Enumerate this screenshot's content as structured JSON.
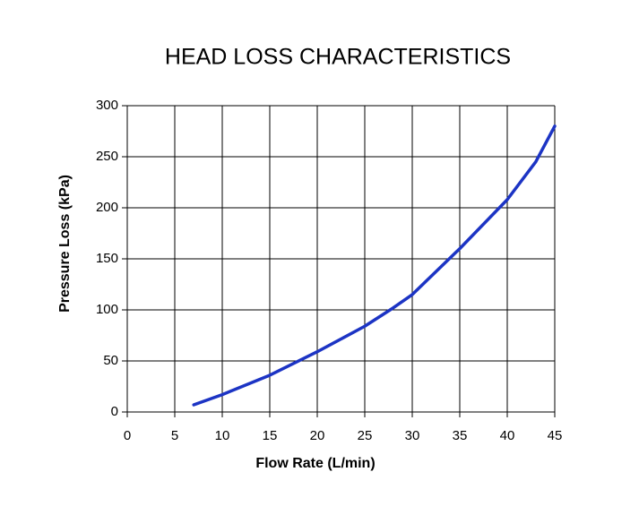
{
  "chart_data": {
    "type": "line",
    "title": "HEAD LOSS CHARACTERISTICS",
    "x_label": "Flow Rate (L/min)",
    "y_label": "Pressure Loss (kPa)",
    "x": [
      7,
      10,
      15,
      20,
      25,
      28,
      30,
      35,
      40,
      43,
      45
    ],
    "series": [
      {
        "name": "Head loss",
        "color": "#1c34c4",
        "values": [
          7,
          17,
          36,
          59,
          84,
          102,
          115,
          160,
          208,
          245,
          280
        ]
      }
    ],
    "xlim": [
      0,
      45
    ],
    "xticks": [
      0,
      5,
      10,
      15,
      20,
      25,
      30,
      35,
      40,
      45
    ],
    "ylim": [
      0,
      300
    ],
    "yticks": [
      0,
      50,
      100,
      150,
      200,
      250,
      300
    ],
    "grid": true
  }
}
